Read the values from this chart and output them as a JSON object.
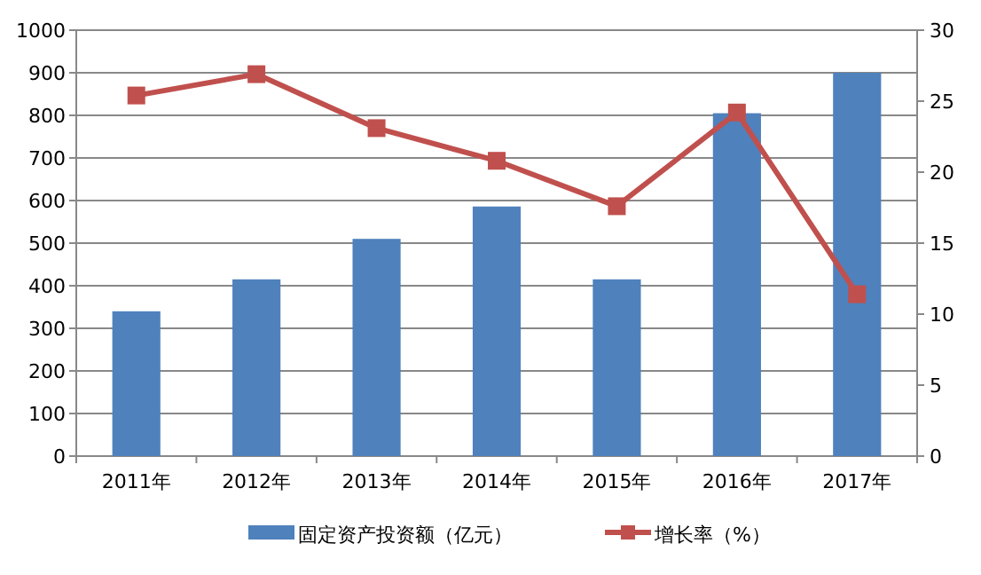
{
  "chart_data": {
    "type": "bar",
    "categories": [
      "2011年",
      "2012年",
      "2013年",
      "2014年",
      "2015年",
      "2016年",
      "2017年"
    ],
    "series": [
      {
        "name": "固定资产投资额（亿元）",
        "color": "#4f81bd",
        "values": [
          340,
          415,
          510,
          586,
          415,
          805,
          900
        ]
      },
      {
        "name": "增长率（%）",
        "type": "line",
        "axis": "y2",
        "color": "#c0504d",
        "marker": "square",
        "values": [
          25.4,
          26.9,
          23.1,
          20.8,
          17.6,
          24.2,
          11.4
        ]
      }
    ],
    "ylim": [
      0,
      1000
    ],
    "yticks": [
      0,
      100,
      200,
      300,
      400,
      500,
      600,
      700,
      800,
      900,
      1000
    ],
    "y2lim": [
      0,
      30
    ],
    "y2ticks": [
      0,
      5,
      10,
      15,
      20,
      25,
      30
    ],
    "grid": "y",
    "legend": "bottom"
  }
}
